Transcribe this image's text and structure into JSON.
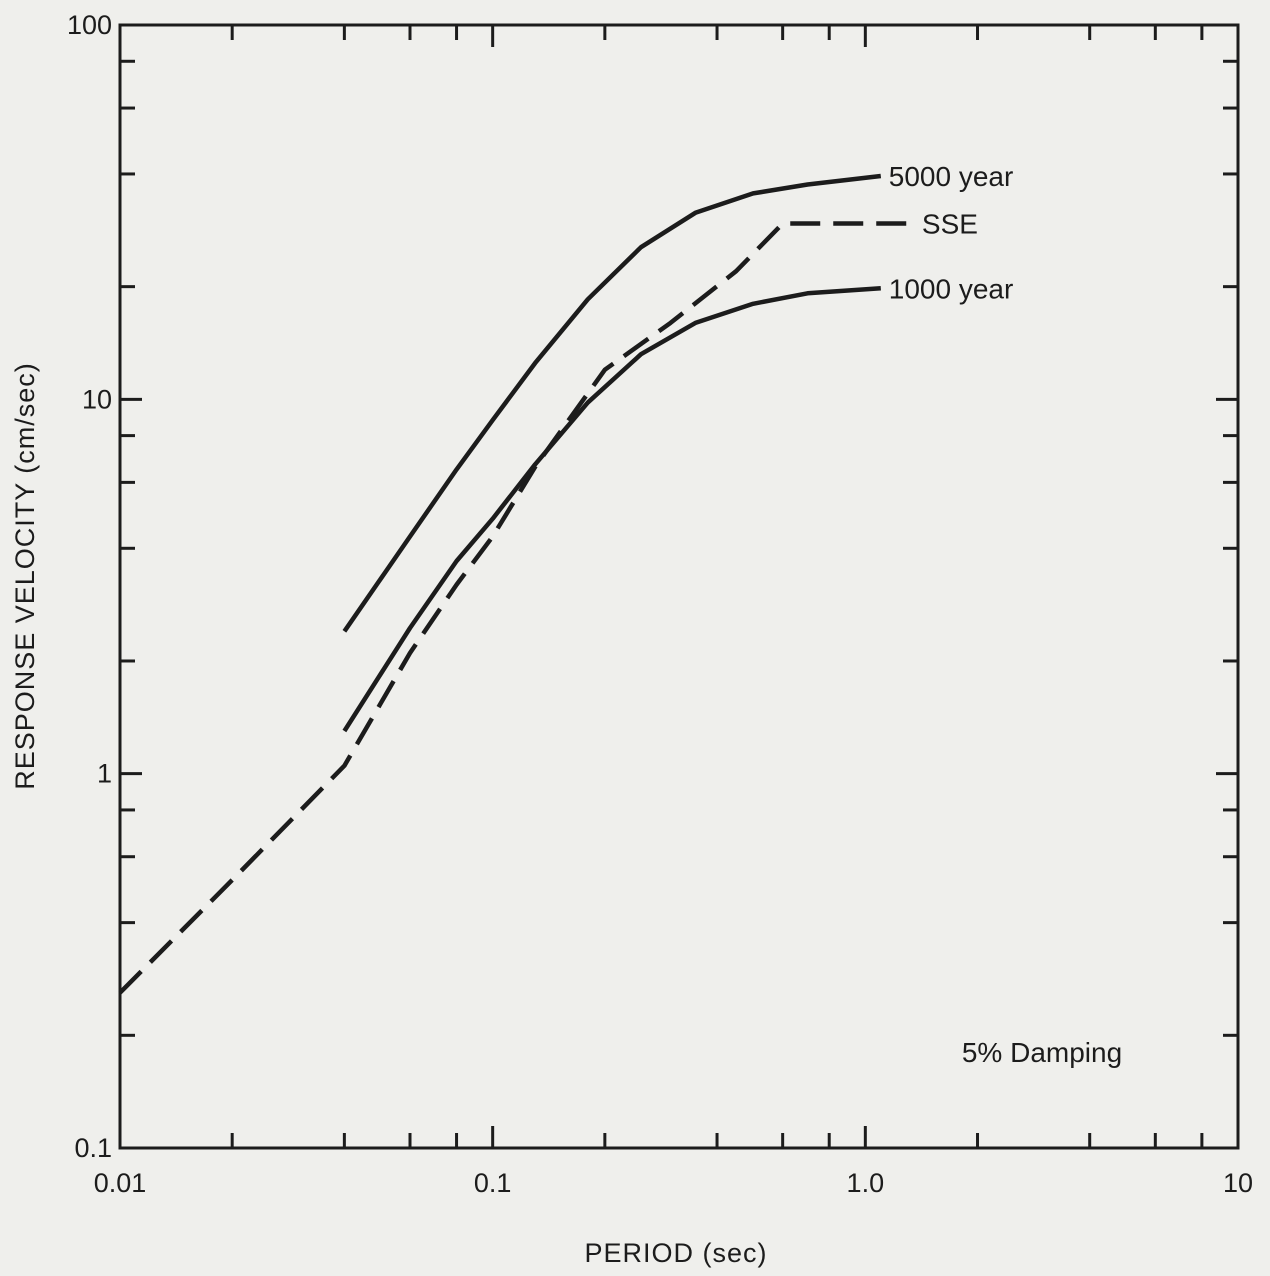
{
  "chart_data": {
    "type": "line",
    "title": "",
    "xlabel": "PERIOD (sec)",
    "ylabel": "RESPONSE VELOCITY (cm/sec)",
    "xscale": "log",
    "yscale": "log",
    "xlim": [
      0.01,
      10
    ],
    "ylim": [
      0.1,
      100
    ],
    "x_tick_labels": [
      "0.01",
      "0.1",
      "1.0",
      "10"
    ],
    "y_tick_labels": [
      "0.1",
      "1",
      "10",
      "100"
    ],
    "grid": false,
    "annotation": "5% Damping",
    "series": [
      {
        "name": "5000 year",
        "style": "solid",
        "x": [
          0.04,
          0.06,
          0.08,
          0.1,
          0.13,
          0.18,
          0.25,
          0.35,
          0.5,
          0.7,
          1.1
        ],
        "y": [
          2.4,
          4.3,
          6.5,
          8.8,
          12.5,
          18.5,
          25.5,
          31.5,
          35.5,
          37.5,
          39.5
        ]
      },
      {
        "name": "SSE",
        "style": "dashed",
        "x": [
          0.01,
          0.02,
          0.04,
          0.06,
          0.08,
          0.1,
          0.13,
          0.2,
          0.3,
          0.45,
          0.6,
          1.0,
          1.35
        ],
        "y": [
          0.26,
          0.52,
          1.05,
          2.1,
          3.2,
          4.3,
          6.6,
          12.0,
          16.0,
          22.0,
          29.5,
          29.5,
          29.5
        ]
      },
      {
        "name": "1000 year",
        "style": "solid",
        "x": [
          0.04,
          0.06,
          0.08,
          0.1,
          0.13,
          0.18,
          0.25,
          0.35,
          0.5,
          0.7,
          1.1
        ],
        "y": [
          1.3,
          2.45,
          3.7,
          4.8,
          6.7,
          9.8,
          13.2,
          16.0,
          18.0,
          19.2,
          19.8
        ]
      }
    ]
  }
}
